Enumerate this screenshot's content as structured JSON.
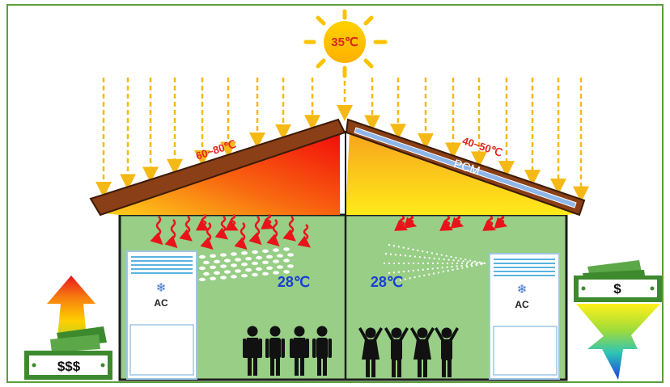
{
  "sun": {
    "label": "35℃",
    "icon": "sun-icon"
  },
  "roof_left": {
    "temperature_label": "60~80℃"
  },
  "roof_right": {
    "temperature_label": "40~50℃",
    "layer_label": "PCM"
  },
  "rooms": {
    "left": {
      "temperature_label": "28℃",
      "ac_label": "AC",
      "occupants_icon": "people-icon"
    },
    "right": {
      "temperature_label": "28℃",
      "ac_label": "AC",
      "occupants_icon": "happy-people-icon"
    }
  },
  "cost": {
    "left": {
      "label": "$$$",
      "trend": "up-arrow-icon"
    },
    "right": {
      "label": "$",
      "trend": "down-arrow-icon"
    }
  },
  "colors": {
    "frame": "#5a9e3a",
    "wall": "#98ce86",
    "roof_hot": "#f20f0f",
    "roof_warm": "#ffe000",
    "rays": "#f5b915",
    "heat_arrow": "#e8141a",
    "temp_text": "#1a3fd6",
    "money": "#3d8a2e"
  }
}
